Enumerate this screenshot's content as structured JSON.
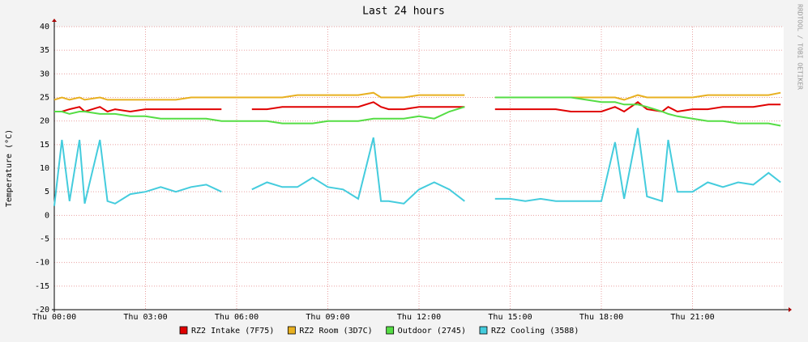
{
  "chart_data": {
    "type": "line",
    "title": "Last 24 hours",
    "y_label": "Temperature (°C)",
    "watermark": "RRDTOOL / TOBI OETIKER",
    "x": [
      0,
      0.25,
      0.5,
      0.83,
      1.0,
      1.5,
      1.75,
      2.0,
      2.5,
      3.0,
      3.5,
      4.0,
      4.5,
      5.0,
      5.5,
      6.0,
      6.5,
      7.0,
      7.5,
      8.0,
      8.5,
      9.0,
      9.5,
      10.0,
      10.5,
      10.75,
      11.0,
      11.5,
      12.0,
      12.5,
      13.0,
      13.5,
      14.0,
      14.5,
      15.0,
      15.5,
      16.0,
      16.5,
      17.0,
      17.5,
      18.0,
      18.45,
      18.75,
      19.2,
      19.5,
      20.0,
      20.2,
      20.5,
      21.0,
      21.5,
      22.0,
      22.5,
      23.0,
      23.5,
      23.9
    ],
    "series": [
      {
        "name": "RZ2 Intake (7F75)",
        "color": "#e00000",
        "values": [
          22,
          22,
          22.5,
          23,
          22,
          23,
          22,
          22.5,
          22,
          22.5,
          22.5,
          22.5,
          22.5,
          22.5,
          22.5,
          null,
          22.5,
          22.5,
          23,
          23,
          23,
          23,
          23,
          23,
          24,
          23,
          22.5,
          22.5,
          23,
          23,
          23,
          23,
          null,
          22.5,
          22.5,
          22.5,
          22.5,
          22.5,
          22,
          22,
          22,
          23,
          22,
          24,
          22.5,
          22,
          23,
          22,
          22.5,
          22.5,
          23,
          23,
          23,
          23.5,
          23.5
        ]
      },
      {
        "name": "RZ2 Room (3D7C)",
        "color": "#e8b020",
        "values": [
          24.5,
          25,
          24.5,
          25,
          24.5,
          25,
          24.5,
          24.5,
          24.5,
          24.5,
          24.5,
          24.5,
          25,
          25,
          25,
          25,
          25,
          25,
          25,
          25.5,
          25.5,
          25.5,
          25.5,
          25.5,
          26,
          25,
          25,
          25,
          25.5,
          25.5,
          25.5,
          25.5,
          null,
          25,
          25,
          25,
          25,
          25,
          25,
          25,
          25,
          25,
          24.5,
          25.5,
          25,
          25,
          25,
          25,
          25,
          25.5,
          25.5,
          25.5,
          25.5,
          25.5,
          26
        ]
      },
      {
        "name": "Outdoor (2745)",
        "color": "#55dd44",
        "values": [
          22,
          22,
          21.5,
          22,
          22,
          21.5,
          21.5,
          21.5,
          21,
          21,
          20.5,
          20.5,
          20.5,
          20.5,
          20,
          20,
          20,
          20,
          19.5,
          19.5,
          19.5,
          20,
          20,
          20,
          20.5,
          20.5,
          20.5,
          20.5,
          21,
          20.5,
          22,
          23,
          null,
          25,
          25,
          25,
          25,
          25,
          25,
          24.5,
          24,
          24,
          23.5,
          23.5,
          23,
          22,
          21.5,
          21,
          20.5,
          20,
          20,
          19.5,
          19.5,
          19.5,
          19
        ]
      },
      {
        "name": "RZ2 Cooling (3588)",
        "color": "#44ccdd",
        "values": [
          2,
          16,
          3,
          16,
          2.5,
          16,
          3,
          2.5,
          4.5,
          5,
          6,
          5,
          6,
          6.5,
          5,
          null,
          5.5,
          7,
          6,
          6,
          8,
          6,
          5.5,
          3.5,
          16.5,
          3,
          3,
          2.5,
          5.5,
          7,
          5.5,
          3,
          null,
          3.5,
          3.5,
          3,
          3.5,
          3,
          3,
          3,
          3,
          15.5,
          3.5,
          18.5,
          4,
          3,
          16,
          5,
          5,
          7,
          6,
          7,
          6.5,
          9,
          7
        ]
      }
    ],
    "xlim": [
      0,
      24
    ],
    "xticks": [
      {
        "value": 0,
        "label": "Thu 00:00"
      },
      {
        "value": 3,
        "label": "Thu 03:00"
      },
      {
        "value": 6,
        "label": "Thu 06:00"
      },
      {
        "value": 9,
        "label": "Thu 09:00"
      },
      {
        "value": 12,
        "label": "Thu 12:00"
      },
      {
        "value": 15,
        "label": "Thu 15:00"
      },
      {
        "value": 18,
        "label": "Thu 18:00"
      },
      {
        "value": 21,
        "label": "Thu 21:00"
      }
    ],
    "ylim": [
      -20,
      40
    ],
    "yticks": [
      -20,
      -15,
      -10,
      -5,
      0,
      5,
      10,
      15,
      20,
      25,
      30,
      35,
      40
    ],
    "grid": true
  }
}
